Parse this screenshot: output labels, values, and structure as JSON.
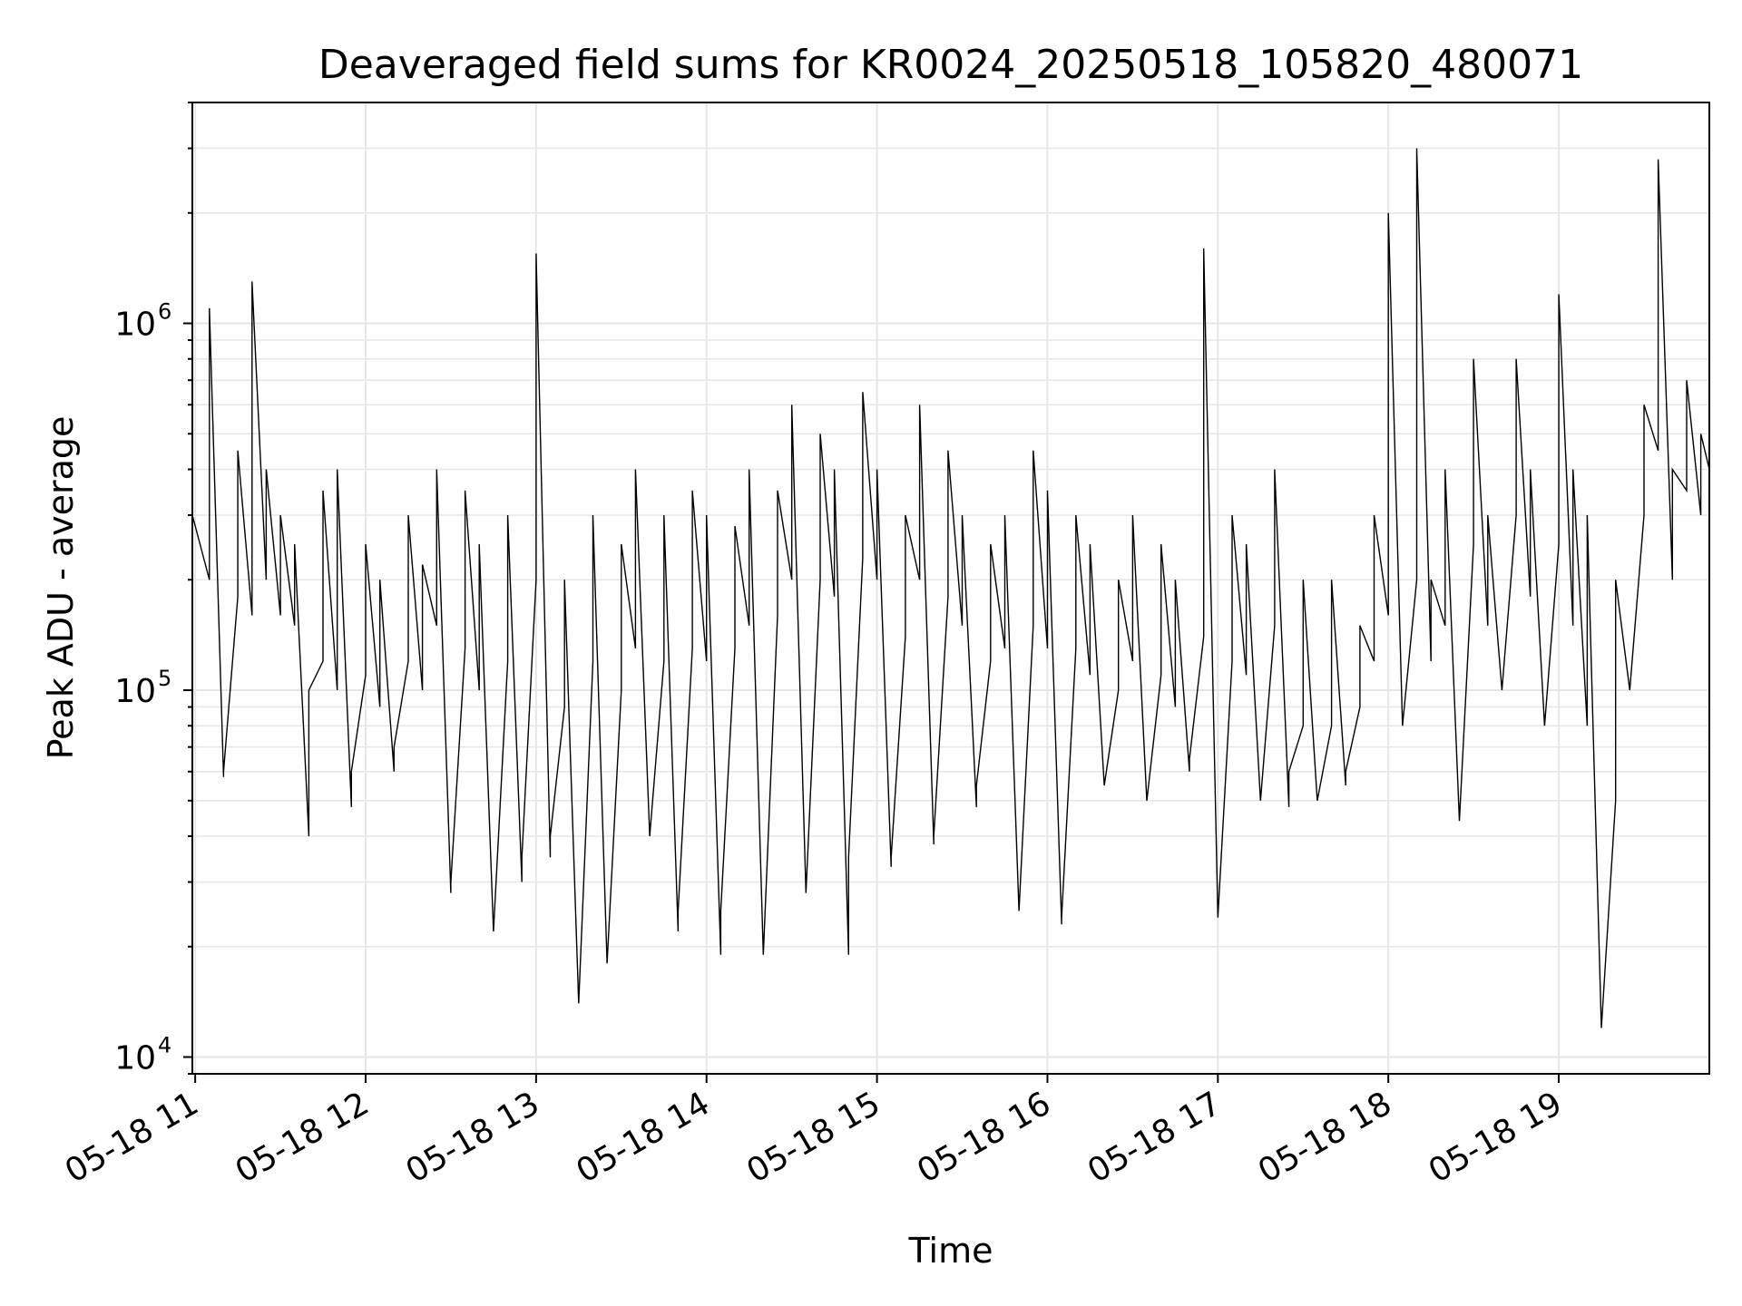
{
  "chart_data": {
    "type": "line",
    "title": "Deaveraged field sums for KR0024_20250518_105820_480071",
    "xlabel": "Time",
    "ylabel": "Peak ADU - average",
    "y_scale": "log",
    "ylim": [
      9000,
      4000000
    ],
    "y_major_ticks": [
      {
        "value": 10000,
        "base": "10",
        "exp": "4"
      },
      {
        "value": 100000,
        "base": "10",
        "exp": "5"
      },
      {
        "value": 1000000,
        "base": "10",
        "exp": "6"
      }
    ],
    "xlim": [
      "2025-05-18T10:59",
      "2025-05-18T19:53"
    ],
    "x_ticks": [
      {
        "value": "2025-05-18T11:00",
        "label": "05-18 11"
      },
      {
        "value": "2025-05-18T12:00",
        "label": "05-18 12"
      },
      {
        "value": "2025-05-18T13:00",
        "label": "05-18 13"
      },
      {
        "value": "2025-05-18T14:00",
        "label": "05-18 14"
      },
      {
        "value": "2025-05-18T15:00",
        "label": "05-18 15"
      },
      {
        "value": "2025-05-18T16:00",
        "label": "05-18 16"
      },
      {
        "value": "2025-05-18T17:00",
        "label": "05-18 17"
      },
      {
        "value": "2025-05-18T18:00",
        "label": "05-18 18"
      },
      {
        "value": "2025-05-18T19:00",
        "label": "05-18 19"
      }
    ],
    "grid": true,
    "line_color": "#000000",
    "grid_color": "#e6e6e6",
    "series": [
      {
        "x": [
          "2025-05-18T10:59",
          "2025-05-18T11:05",
          "2025-05-18T11:10",
          "2025-05-18T11:15",
          "2025-05-18T11:20",
          "2025-05-18T11:25",
          "2025-05-18T11:30",
          "2025-05-18T11:35",
          "2025-05-18T11:40",
          "2025-05-18T11:45",
          "2025-05-18T11:50",
          "2025-05-18T11:55",
          "2025-05-18T12:00",
          "2025-05-18T12:05",
          "2025-05-18T12:10",
          "2025-05-18T12:15",
          "2025-05-18T12:20",
          "2025-05-18T12:25",
          "2025-05-18T12:30",
          "2025-05-18T12:35",
          "2025-05-18T12:40",
          "2025-05-18T12:45",
          "2025-05-18T12:50",
          "2025-05-18T12:55",
          "2025-05-18T13:00",
          "2025-05-18T13:05",
          "2025-05-18T13:10",
          "2025-05-18T13:15",
          "2025-05-18T13:20",
          "2025-05-18T13:25",
          "2025-05-18T13:30",
          "2025-05-18T13:35",
          "2025-05-18T13:40",
          "2025-05-18T13:45",
          "2025-05-18T13:50",
          "2025-05-18T13:55",
          "2025-05-18T14:00",
          "2025-05-18T14:05",
          "2025-05-18T14:10",
          "2025-05-18T14:15",
          "2025-05-18T14:20",
          "2025-05-18T14:25",
          "2025-05-18T14:30",
          "2025-05-18T14:35",
          "2025-05-18T14:40",
          "2025-05-18T14:45",
          "2025-05-18T14:50",
          "2025-05-18T14:55",
          "2025-05-18T15:00",
          "2025-05-18T15:05",
          "2025-05-18T15:10",
          "2025-05-18T15:15",
          "2025-05-18T15:20",
          "2025-05-18T15:25",
          "2025-05-18T15:30",
          "2025-05-18T15:35",
          "2025-05-18T15:40",
          "2025-05-18T15:45",
          "2025-05-18T15:50",
          "2025-05-18T15:55",
          "2025-05-18T16:00",
          "2025-05-18T16:05",
          "2025-05-18T16:10",
          "2025-05-18T16:15",
          "2025-05-18T16:20",
          "2025-05-18T16:25",
          "2025-05-18T16:30",
          "2025-05-18T16:35",
          "2025-05-18T16:40",
          "2025-05-18T16:45",
          "2025-05-18T16:50",
          "2025-05-18T16:55",
          "2025-05-18T17:00",
          "2025-05-18T17:05",
          "2025-05-18T17:10",
          "2025-05-18T17:15",
          "2025-05-18T17:20",
          "2025-05-18T17:25",
          "2025-05-18T17:30",
          "2025-05-18T17:35",
          "2025-05-18T17:40",
          "2025-05-18T17:45",
          "2025-05-18T17:50",
          "2025-05-18T17:55",
          "2025-05-18T18:00",
          "2025-05-18T18:05",
          "2025-05-18T18:10",
          "2025-05-18T18:15",
          "2025-05-18T18:20",
          "2025-05-18T18:25",
          "2025-05-18T18:30",
          "2025-05-18T18:35",
          "2025-05-18T18:40",
          "2025-05-18T18:45",
          "2025-05-18T18:50",
          "2025-05-18T18:55",
          "2025-05-18T19:00",
          "2025-05-18T19:05",
          "2025-05-18T19:10",
          "2025-05-18T19:15",
          "2025-05-18T19:20",
          "2025-05-18T19:25",
          "2025-05-18T19:30",
          "2025-05-18T19:35",
          "2025-05-18T19:40",
          "2025-05-18T19:45",
          "2025-05-18T19:50",
          "2025-05-18T19:53"
        ],
        "y": [
          300000,
          1100000,
          60000,
          450000,
          1300000,
          400000,
          300000,
          250000,
          100000,
          350000,
          400000,
          60000,
          250000,
          200000,
          70000,
          300000,
          220000,
          400000,
          30000,
          350000,
          250000,
          22000,
          300000,
          35000,
          1550000,
          40000,
          200000,
          14000,
          300000,
          18000,
          250000,
          400000,
          40000,
          300000,
          25000,
          350000,
          300000,
          25000,
          280000,
          400000,
          19000,
          350000,
          600000,
          28000,
          500000,
          400000,
          35000,
          650000,
          400000,
          35000,
          300000,
          600000,
          40000,
          450000,
          300000,
          55000,
          250000,
          300000,
          25000,
          450000,
          350000,
          24000,
          300000,
          250000,
          55000,
          200000,
          300000,
          50000,
          250000,
          200000,
          65000,
          1600000,
          24000,
          300000,
          250000,
          50000,
          400000,
          60000,
          200000,
          50000,
          200000,
          60000,
          150000,
          300000,
          2000000,
          80000,
          3000000,
          200000,
          400000,
          44000,
          800000,
          300000,
          100000,
          800000,
          400000,
          80000,
          1200000,
          400000,
          300000,
          12000,
          200000,
          100000,
          600000,
          2800000,
          400000,
          700000,
          500000,
          600000
        ],
        "y_floor": [
          150000,
          200000,
          58000,
          180000,
          160000,
          200000,
          160000,
          150000,
          40000,
          120000,
          100000,
          48000,
          110000,
          90000,
          60000,
          120000,
          100000,
          150000,
          28000,
          130000,
          100000,
          22000,
          120000,
          30000,
          200000,
          35000,
          90000,
          14000,
          120000,
          18000,
          100000,
          130000,
          40000,
          120000,
          22000,
          130000,
          120000,
          19000,
          130000,
          150000,
          19000,
          160000,
          200000,
          28000,
          200000,
          180000,
          19000,
          230000,
          200000,
          33000,
          140000,
          200000,
          38000,
          180000,
          150000,
          48000,
          120000,
          130000,
          25000,
          150000,
          130000,
          23000,
          130000,
          110000,
          55000,
          100000,
          120000,
          50000,
          110000,
          90000,
          60000,
          140000,
          24000,
          120000,
          110000,
          50000,
          150000,
          48000,
          80000,
          50000,
          80000,
          55000,
          90000,
          120000,
          160000,
          80000,
          200000,
          120000,
          150000,
          44000,
          250000,
          150000,
          100000,
          300000,
          180000,
          80000,
          250000,
          150000,
          80000,
          12000,
          50000,
          100000,
          300000,
          450000,
          200000,
          350000,
          300000,
          400000
        ]
      }
    ]
  }
}
